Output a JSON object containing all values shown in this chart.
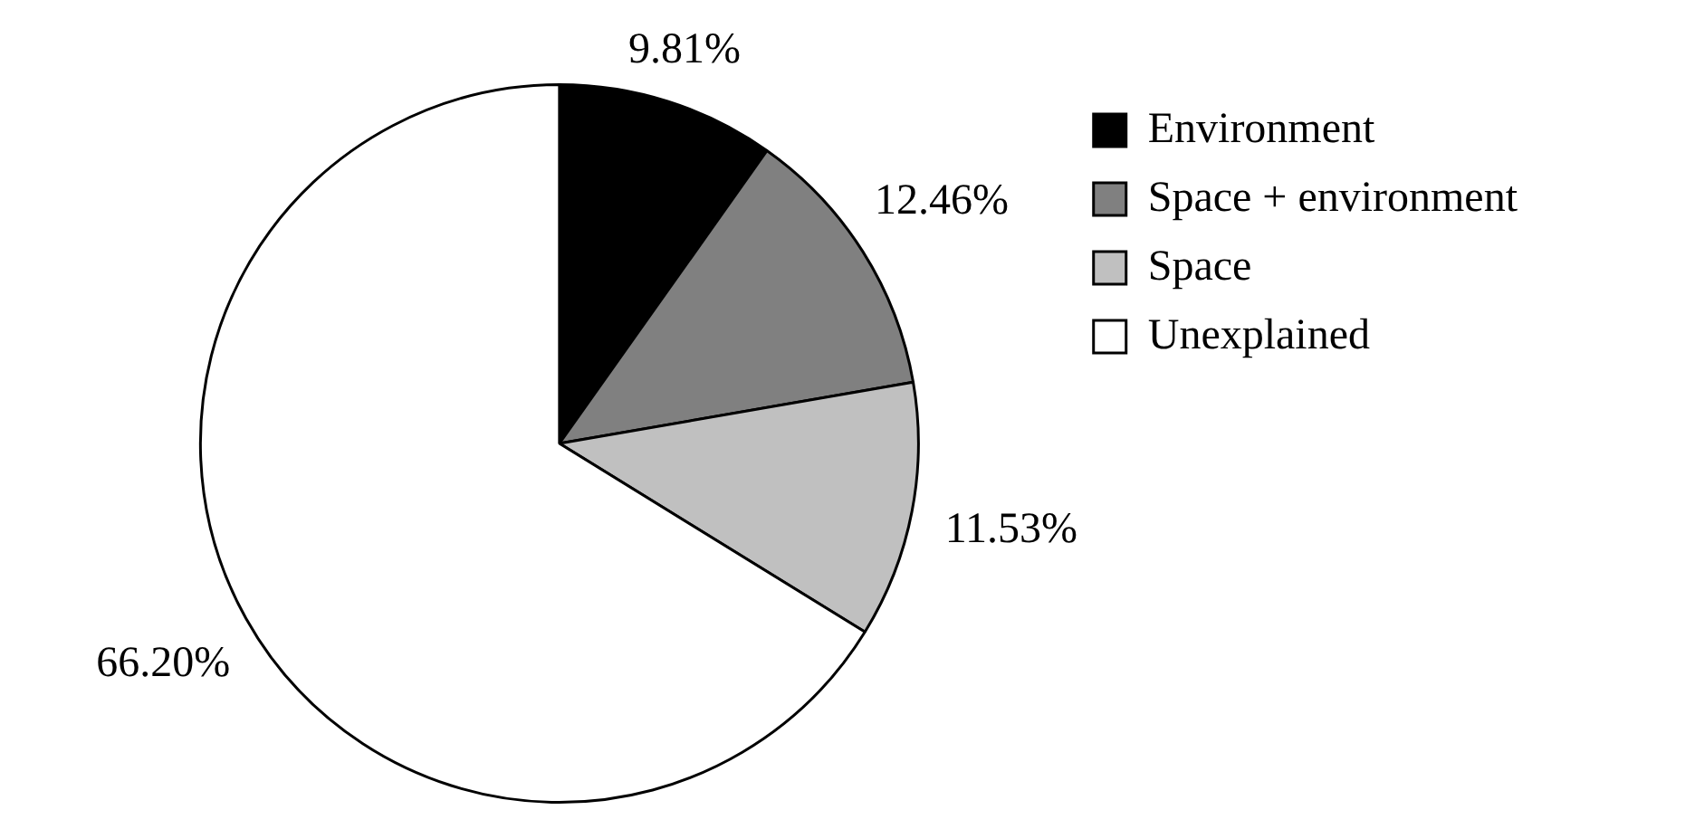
{
  "chart_data": {
    "type": "pie",
    "categories": [
      "Environment",
      "Space + environment",
      "Space",
      "Unexplained"
    ],
    "values": [
      9.81,
      12.46,
      11.53,
      66.2
    ],
    "colors": [
      "#000000",
      "#808080",
      "#c0c0c0",
      "#ffffff"
    ],
    "value_labels": [
      "9.81%",
      "12.46%",
      "11.53%",
      "66.20%"
    ],
    "legend": "top right"
  }
}
